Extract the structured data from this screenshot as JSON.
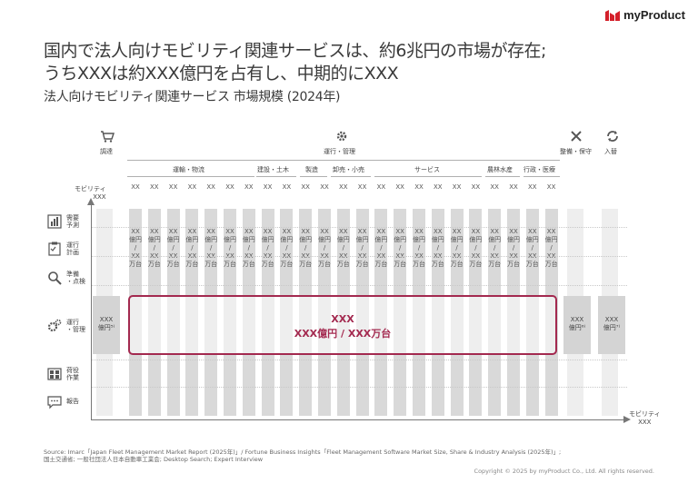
{
  "brand": {
    "name": "myProduct",
    "accent": "#d4202a"
  },
  "title_lines": [
    "国内で法人向けモビリティ関連サービスは、約6兆円の市場が存在;",
    "うちXXXは約XXX億円を占有し、中期的にXXX"
  ],
  "subtitle": "法人向けモビリティ関連サービス 市場規模 (2024年)",
  "top_headers": {
    "procure": "調達",
    "operate": "運行・管理",
    "maintain": "整備・保守",
    "replace": "入替"
  },
  "sub_sectors": [
    "運輸・物流",
    "建設・土木",
    "製造",
    "卸売・小売",
    "サービス",
    "農林水産",
    "行政・医療"
  ],
  "y_axis": {
    "line1": "モビリティ",
    "line2": "XXX"
  },
  "x_axis": {
    "line1": "モビリティ",
    "line2": "XXX"
  },
  "xx_label": "XX",
  "rows": [
    {
      "l1": "需要",
      "l2": "予測",
      "icon": "bar-chart-icon"
    },
    {
      "l1": "運行",
      "l2": "計画",
      "icon": "clipboard-icon"
    },
    {
      "l1": "準備",
      "l2": "・点検",
      "icon": "magnifier-icon"
    },
    {
      "l1": "運行",
      "l2": "・管理",
      "icon": "gears-icon"
    },
    {
      "l1": "荷役",
      "l2": "作業",
      "icon": "warehouse-icon"
    },
    {
      "l1": "報告",
      "l2": "",
      "icon": "chat-icon"
    }
  ],
  "cell": {
    "a": "XX",
    "b": "億円",
    "c": "/",
    "d": "XX",
    "e": "万台"
  },
  "left_box": {
    "l1": "XXX",
    "l2": "億円⁵⁾"
  },
  "right_box1": {
    "l1": "XXX",
    "l2": "億円⁶⁾"
  },
  "right_box2": {
    "l1": "XXX",
    "l2": "億円⁷⁾"
  },
  "main_box": {
    "l1": "XXX",
    "l2": "XXX億円 / XXX万台"
  },
  "footer": {
    "line1": "Source: Imarc「Japan Fleet Management Market Report (2025年)」/ Fortune Business Insights「Fleet Management Software Market Size, Share & Industry Analysis (2025年)」;",
    "line2": "国土交通省; 一般社団法人日本自動車工業会; Desktop Search; Expert Interview"
  },
  "copyright": "Copyright © 2025 by myProduct Co., Ltd.  All rights reserved."
}
